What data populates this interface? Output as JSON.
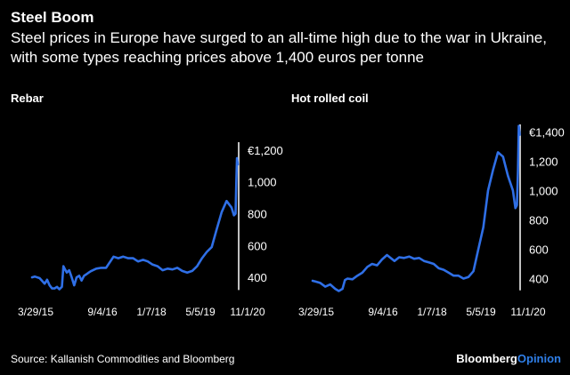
{
  "header": {
    "title": "Steel Boom",
    "subtitle": "Steel prices in Europe have surged to an all-time high due to the war in Ukraine, with some types reaching prices above 1,400 euros per tonne"
  },
  "footer": {
    "source": "Source: Kallanish Commodities and Bloomberg",
    "brand_main": "Bloomberg",
    "brand_accent": "Opinion"
  },
  "colors": {
    "line": "#2f6fe6",
    "axis": "#ffffff",
    "background": "#000000"
  },
  "chart_data": [
    {
      "type": "line",
      "title": "Rebar",
      "xlabel": "",
      "ylabel": "",
      "x_ticks": [
        "3/29/15",
        "9/4/16",
        "1/7/18",
        "5/5/19",
        "11/1/20"
      ],
      "y_ticks": [
        "€1,200",
        "1,000",
        "800",
        "600",
        "400"
      ],
      "ylim": [
        300,
        1250
      ],
      "grid": false,
      "series": [
        {
          "x": [
            "2015-03-29",
            "2015-05-01",
            "2015-07-01",
            "2015-09-01",
            "2015-10-01",
            "2015-11-01",
            "2015-12-01",
            "2016-01-01",
            "2016-02-01",
            "2016-03-01",
            "2016-04-01",
            "2016-04-20",
            "2016-05-10",
            "2016-06-01",
            "2016-07-01",
            "2016-08-01",
            "2016-09-01",
            "2016-10-01",
            "2016-11-01",
            "2016-12-01",
            "2017-01-01",
            "2017-02-01",
            "2017-03-01",
            "2017-04-01",
            "2017-06-01",
            "2017-08-01",
            "2017-10-01",
            "2018-01-01",
            "2018-03-01",
            "2018-05-01",
            "2018-07-01",
            "2018-09-01",
            "2018-11-01",
            "2019-01-01",
            "2019-03-01",
            "2019-05-01",
            "2019-07-01",
            "2019-09-01",
            "2019-11-01",
            "2020-01-01",
            "2020-03-01",
            "2020-05-01",
            "2020-07-01",
            "2020-09-01",
            "2020-11-01",
            "2021-01-01",
            "2021-03-01",
            "2021-05-01",
            "2021-07-01",
            "2021-09-01",
            "2021-11-01",
            "2022-01-01",
            "2022-02-01",
            "2022-02-20",
            "2022-03-01",
            "2022-03-10",
            "2022-03-20"
          ],
          "y": [
            400,
            405,
            395,
            360,
            385,
            350,
            330,
            330,
            340,
            325,
            340,
            470,
            450,
            430,
            445,
            400,
            350,
            400,
            410,
            380,
            410,
            420,
            430,
            440,
            455,
            460,
            460,
            530,
            520,
            530,
            520,
            520,
            500,
            510,
            500,
            480,
            470,
            445,
            455,
            450,
            460,
            440,
            430,
            440,
            470,
            520,
            560,
            590,
            700,
            810,
            880,
            840,
            790,
            800,
            990,
            1150,
            1110
          ]
        }
      ]
    },
    {
      "type": "line",
      "title": "Hot rolled coil",
      "xlabel": "",
      "ylabel": "",
      "x_ticks": [
        "3/29/15",
        "9/4/16",
        "1/7/18",
        "5/5/19",
        "11/1/20"
      ],
      "y_ticks": [
        "€1,400",
        "1,200",
        "1,000",
        "800",
        "600",
        "400"
      ],
      "ylim": [
        300,
        1450
      ],
      "grid": false,
      "series": [
        {
          "x": [
            "2015-03-29",
            "2015-05-01",
            "2015-07-01",
            "2015-09-01",
            "2015-11-01",
            "2016-01-01",
            "2016-02-15",
            "2016-04-01",
            "2016-05-01",
            "2016-06-01",
            "2016-08-01",
            "2016-10-01",
            "2016-12-01",
            "2017-02-01",
            "2017-04-01",
            "2017-06-01",
            "2017-08-01",
            "2017-10-01",
            "2018-01-01",
            "2018-03-01",
            "2018-05-01",
            "2018-07-01",
            "2018-09-01",
            "2018-11-01",
            "2019-01-01",
            "2019-03-01",
            "2019-05-01",
            "2019-07-01",
            "2019-09-01",
            "2019-11-01",
            "2020-01-01",
            "2020-03-01",
            "2020-05-01",
            "2020-07-01",
            "2020-09-01",
            "2020-11-01",
            "2021-01-01",
            "2021-03-01",
            "2021-05-01",
            "2021-07-01",
            "2021-09-01",
            "2021-11-01",
            "2022-01-01",
            "2022-02-01",
            "2022-02-20",
            "2022-03-05",
            "2022-03-15",
            "2022-03-25"
          ],
          "y": [
            385,
            380,
            370,
            345,
            360,
            330,
            315,
            330,
            390,
            400,
            395,
            420,
            440,
            480,
            500,
            490,
            530,
            560,
            520,
            545,
            540,
            550,
            535,
            540,
            520,
            510,
            500,
            470,
            460,
            440,
            420,
            420,
            400,
            410,
            450,
            600,
            750,
            1000,
            1140,
            1260,
            1230,
            1100,
            1000,
            880,
            900,
            1140,
            1440,
            1380
          ]
        }
      ]
    }
  ]
}
